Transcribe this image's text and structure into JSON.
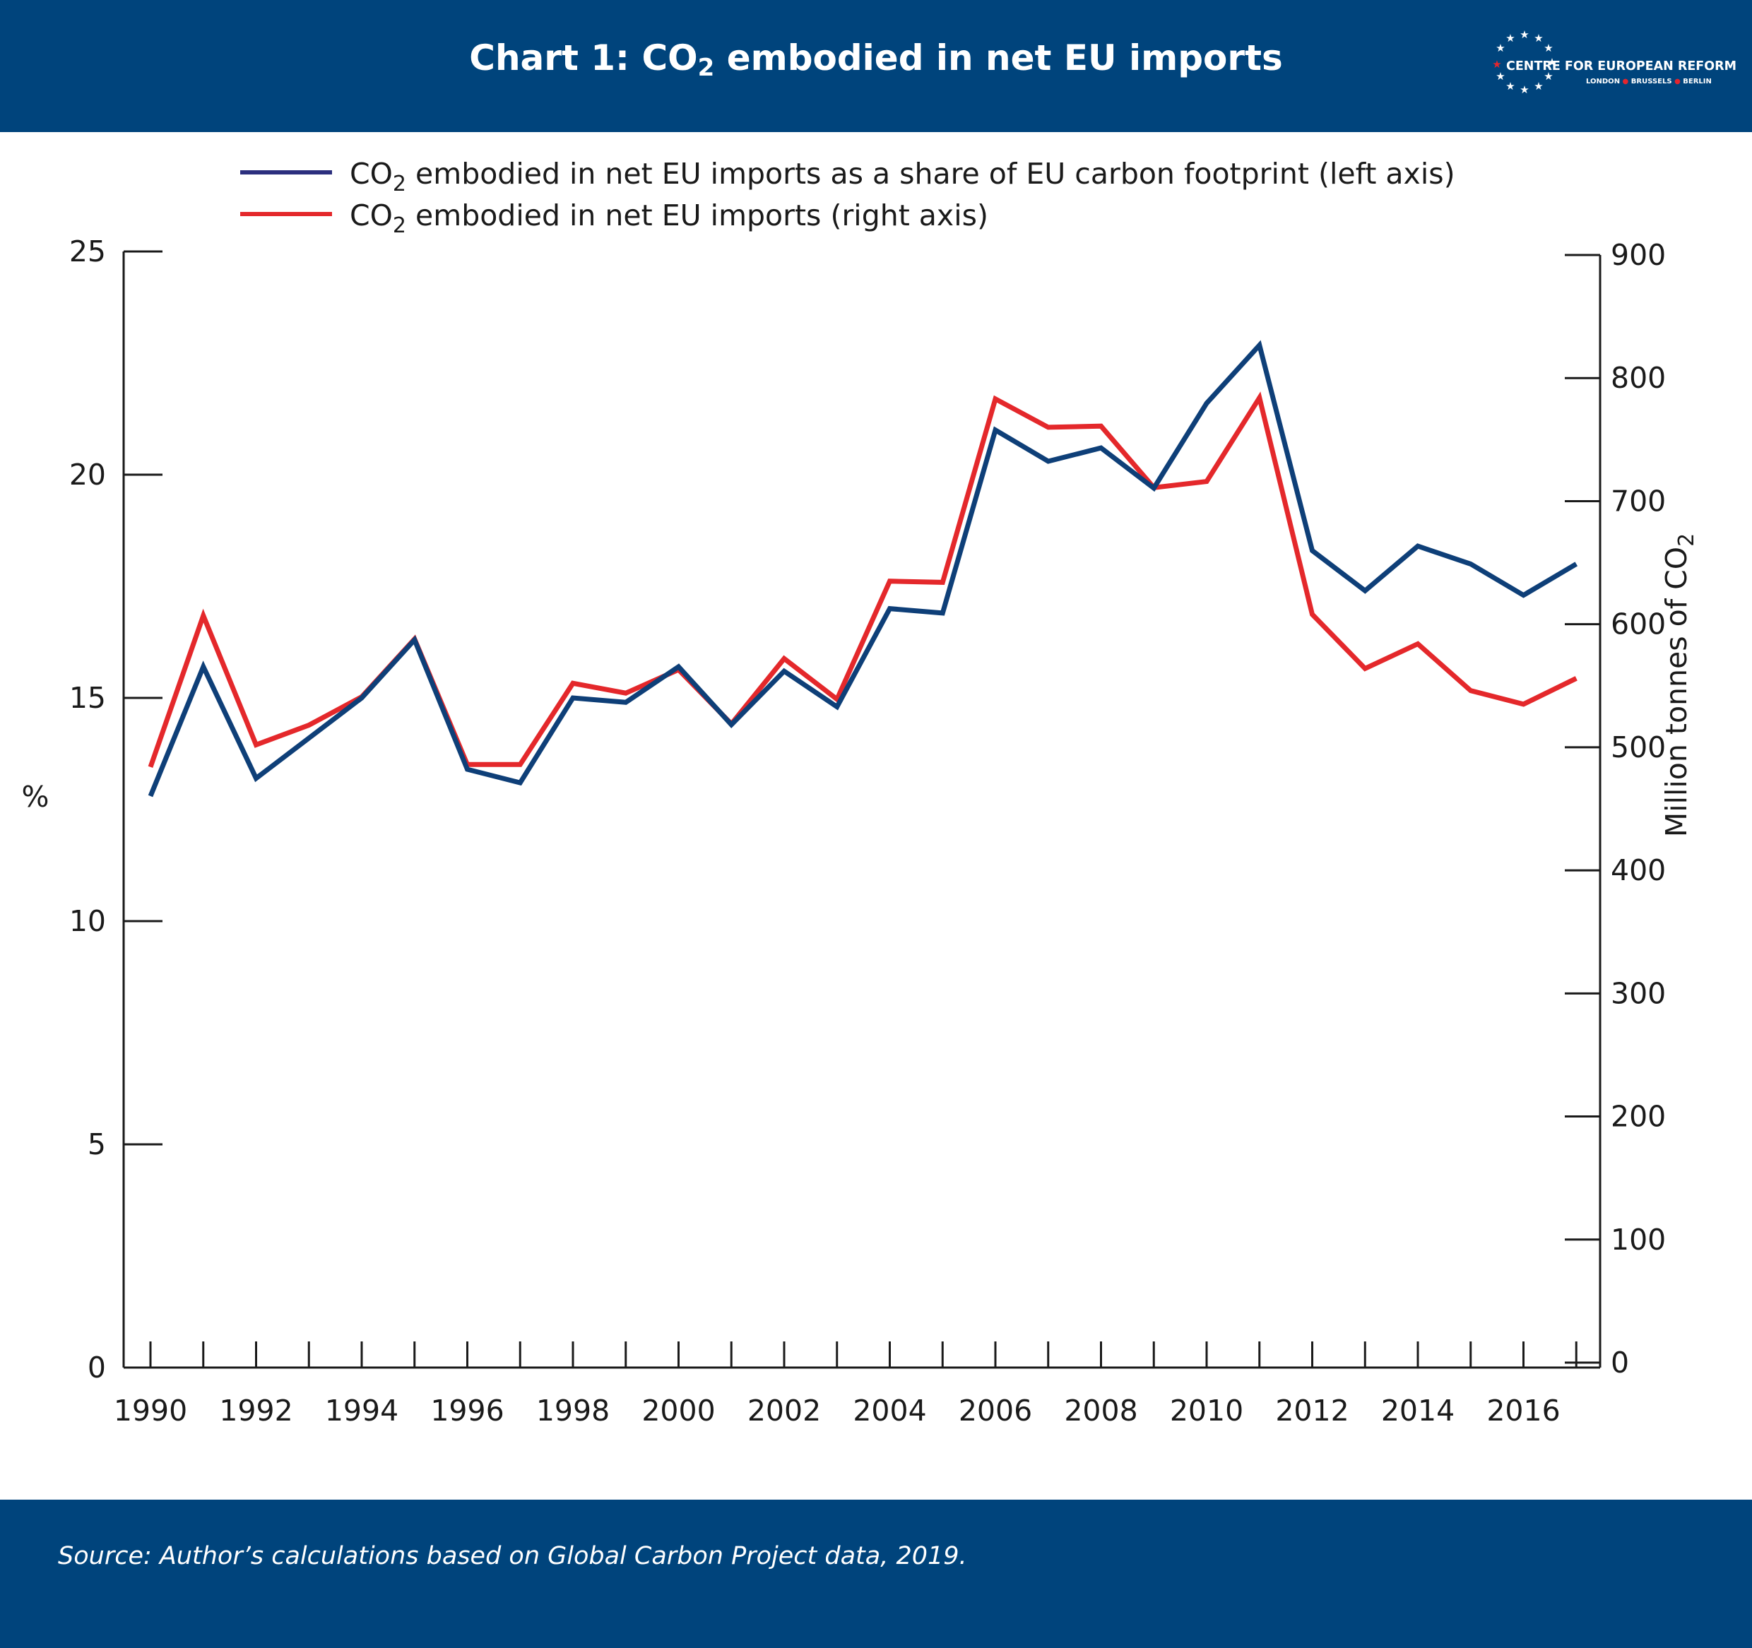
{
  "header": {
    "title_prefix": "Chart 1: CO",
    "title_sub": "2",
    "title_suffix": " embodied in net EU imports",
    "background_color": "#00447c"
  },
  "logo": {
    "name": "CENTRE FOR EUROPEAN REFORM",
    "city_1": "LONDON",
    "city_2": "BRUSSELS",
    "city_3": "BERLIN"
  },
  "footer": {
    "source": "Source: Author’s calculations based on Global Carbon Project data, 2019."
  },
  "chart_data": {
    "type": "line",
    "x": [
      1990,
      1991,
      1992,
      1993,
      1994,
      1995,
      1996,
      1997,
      1998,
      1999,
      2000,
      2001,
      2002,
      2003,
      2004,
      2005,
      2006,
      2007,
      2008,
      2009,
      2010,
      2011,
      2012,
      2013,
      2014,
      2015,
      2016,
      2017
    ],
    "x_tick_labels": [
      "1990",
      "1992",
      "1994",
      "1996",
      "1998",
      "2000",
      "2002",
      "2004",
      "2006",
      "2008",
      "2010",
      "2012",
      "2014",
      "2016"
    ],
    "series": [
      {
        "name_prefix": "CO",
        "name_sub": "2",
        "name_suffix": " embodied in net EU imports as a share of EU carbon footprint (left axis)",
        "axis": "left",
        "color": "#0e3f78",
        "values": [
          12.8,
          15.7,
          13.2,
          14.1,
          15.0,
          16.3,
          13.4,
          13.1,
          15.0,
          14.9,
          15.7,
          14.4,
          15.6,
          14.8,
          17.0,
          16.9,
          21.0,
          20.3,
          20.6,
          19.7,
          21.6,
          22.9,
          18.3,
          17.4,
          18.4,
          18.0,
          17.3,
          18.0
        ]
      },
      {
        "name_prefix": "CO",
        "name_sub": "2",
        "name_suffix": " embodied in net EU imports (right axis)",
        "axis": "right",
        "color": "#e4282b",
        "values": [
          484,
          607,
          502,
          518,
          541,
          588,
          486,
          486,
          552,
          544,
          563,
          519,
          572,
          539,
          635,
          634,
          783,
          760,
          761,
          711,
          716,
          784,
          608,
          564,
          584,
          546,
          535,
          556
        ]
      }
    ],
    "y_left": {
      "label": "%",
      "min": 0,
      "max": 25,
      "ticks": [
        0,
        5,
        10,
        15,
        20,
        25
      ]
    },
    "y_right": {
      "label_prefix": "Million tonnes of CO",
      "label_sub": "2",
      "min": 0,
      "max": 900,
      "ticks": [
        0,
        100,
        200,
        300,
        400,
        500,
        600,
        700,
        800,
        900
      ]
    },
    "legend_position": "top",
    "grid": false
  }
}
